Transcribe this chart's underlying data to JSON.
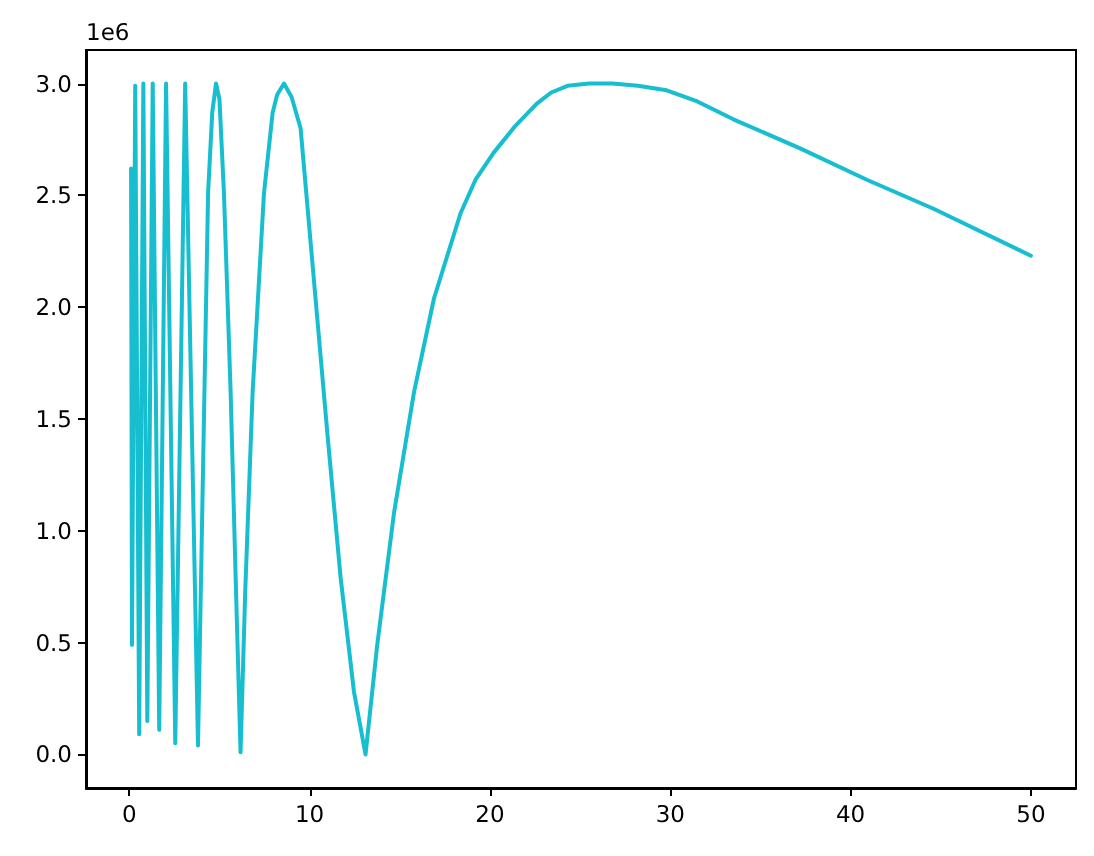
{
  "chart_data": {
    "type": "line",
    "x": [
      0.1,
      0.15,
      0.33,
      0.55,
      0.78,
      1.0,
      1.3,
      1.66,
      2.04,
      2.55,
      3.1,
      3.81,
      4.1,
      4.37,
      4.6,
      4.81,
      5.0,
      5.25,
      5.62,
      5.92,
      6.17,
      6.43,
      6.84,
      7.47,
      7.95,
      8.2,
      8.58,
      9.0,
      9.5,
      10.24,
      10.98,
      11.72,
      12.46,
      13.1,
      13.75,
      14.68,
      15.79,
      16.9,
      18.37,
      19.2,
      20.2,
      21.4,
      22.6,
      23.4,
      24.3,
      25.5,
      26.8,
      28.2,
      29.8,
      31.5,
      33.5,
      37.2,
      40.9,
      44.6,
      50.0
    ],
    "series": [
      {
        "color": "#17becf",
        "values": [
          2.62,
          0.49,
          2.99,
          0.09,
          3.0,
          0.15,
          3.0,
          0.11,
          3.0,
          0.05,
          3.0,
          0.04,
          1.32,
          2.51,
          2.87,
          3.0,
          2.93,
          2.51,
          1.62,
          0.73,
          0.01,
          0.73,
          1.62,
          2.51,
          2.87,
          2.95,
          3.0,
          2.94,
          2.8,
          2.12,
          1.44,
          0.79,
          0.28,
          0.0,
          0.49,
          1.08,
          1.62,
          2.04,
          2.42,
          2.57,
          2.69,
          2.81,
          2.91,
          2.96,
          2.99,
          3.0,
          3.0,
          2.99,
          2.97,
          2.92,
          2.84,
          2.71,
          2.57,
          2.44,
          2.23
        ]
      }
    ],
    "xlim": [
      -2.4,
      52.5
    ],
    "ylim": [
      -0.15,
      3.15
    ],
    "xticks": [
      0,
      10,
      20,
      30,
      40,
      50
    ],
    "yticks": [
      {
        "value": 0,
        "label": "0.0"
      },
      0.5,
      {
        "value": 1,
        "label": "1.0"
      },
      1.5,
      {
        "value": 2,
        "label": "2.0"
      },
      2.5,
      {
        "value": 3,
        "label": "3.0"
      }
    ],
    "annotations": [
      "1e6"
    ]
  }
}
